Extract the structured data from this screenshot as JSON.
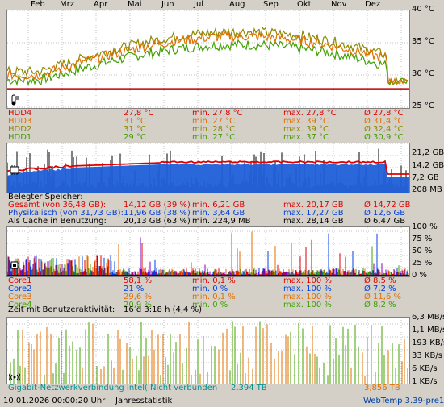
{
  "months": [
    "Feb",
    "Mrz",
    "Apr",
    "Mai",
    "Jun",
    "Jul",
    "Aug",
    "Sep",
    "Okt",
    "Nov",
    "Dez"
  ],
  "colors": {
    "red": "#e00000",
    "dark_red": "#b00000",
    "orange": "#e07000",
    "olive": "#8a8a00",
    "green": "#40a000",
    "blue": "#0040e0",
    "purple": "#8000c0",
    "black": "#000000",
    "teal": "#009090",
    "gray": "#606060"
  },
  "temp": {
    "axis": [
      "40 °C",
      "35 °C",
      "30 °C",
      "25 °C"
    ],
    "ylim": [
      25,
      40
    ],
    "icon": "thermometer-icon",
    "rows": [
      {
        "name": "HDD4",
        "cur": "27,8 °C",
        "min": "min. 27,8 °C",
        "max": "max. 27,8 °C",
        "avg": "Ø 27,8 °C",
        "color": "#e00000"
      },
      {
        "name": "HDD3",
        "cur": "31 °C",
        "min": "min. 27 °C",
        "max": "max. 39 °C",
        "avg": "Ø 31,4 °C",
        "color": "#e07000"
      },
      {
        "name": "HDD2",
        "cur": "31 °C",
        "min": "min. 28 °C",
        "max": "max. 39 °C",
        "avg": "Ø 32,4 °C",
        "color": "#8a8a00"
      },
      {
        "name": "HDD1",
        "cur": "29 °C",
        "min": "min. 27 °C",
        "max": "max. 37 °C",
        "avg": "Ø 30,9 °C",
        "color": "#40a000"
      }
    ]
  },
  "mem": {
    "axis": [
      "21,2 GB",
      "14,2 GB",
      "7,2 GB",
      "208 MB"
    ],
    "icon": "memory-chip-icon",
    "title": "Belegter Speicher:",
    "rows": [
      {
        "name": "Gesamt (von 36,48 GB):",
        "cur": "14,12 GB (39 %)",
        "min": "min. 6,21 GB",
        "max": "max. 20,17 GB",
        "avg": "Ø 14,72 GB",
        "color": "#e00000"
      },
      {
        "name": "Physikalisch (von 31,73 GB):",
        "cur": "11,96 GB (38 %)",
        "min": "min. 3,64 GB",
        "max": "max. 17,27 GB",
        "avg": "Ø 12,6 GB",
        "color": "#0040e0"
      },
      {
        "name": "Als Cache in Benutzung:",
        "cur": "20,13 GB (63 %)",
        "min": "min. 224,9 MB",
        "max": "max. 28,14 GB",
        "avg": "Ø 6,47 GB",
        "color": "#000000"
      }
    ]
  },
  "cpu": {
    "axis": [
      "100 %",
      "75 %",
      "50 %",
      "25 %",
      "0 %"
    ],
    "icon": "cpu-icon",
    "rows": [
      {
        "name": "Core1",
        "cur": "58,1 %",
        "min": "min. 0,1 %",
        "max": "max. 100 %",
        "avg": "Ø 8,5 %",
        "color": "#e00000"
      },
      {
        "name": "Core2",
        "cur": "21 %",
        "min": "min. 0 %",
        "max": "max. 100 %",
        "avg": "Ø 7,2 %",
        "color": "#0040e0"
      },
      {
        "name": "Core3",
        "cur": "29,6 %",
        "min": "min. 0,1 %",
        "max": "max. 100 %",
        "avg": "Ø 11,6 %",
        "color": "#e07000"
      },
      {
        "name": "Core4",
        "cur": "20,9 %",
        "min": "min. 0 %",
        "max": "max. 100 %",
        "avg": "Ø 8,2 %",
        "color": "#40a000"
      }
    ],
    "activity_label": "Zeit mit Benutzeraktivität:",
    "activity_value": "16 d 3:18 h (4,4 %)"
  },
  "net": {
    "axis": [
      "6,3 MB/s",
      "1,1 MB/s",
      "193 KB/s",
      "33 KB/s",
      "6 KB/s",
      "1 KB/s"
    ],
    "icon": "network-antenna-icon",
    "name": "Gigabit-Netzwerkverbindung Intel(",
    "status": "Nicht verbunden",
    "down": "2,394 TB",
    "up": "3,856 TB"
  },
  "footer": {
    "datetime": "10.01.2026 00:00:20 Uhr",
    "stat": "Jahresstatistik",
    "brand": "WebTemp 3.39-pre1"
  }
}
